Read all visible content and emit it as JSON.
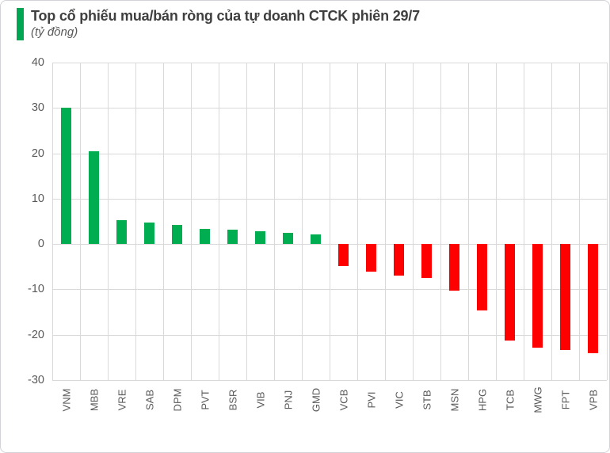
{
  "header": {
    "title": "Top cổ phiếu mua/bán ròng của tự doanh CTCK phiên 29/7",
    "subtitle": "(tỷ đồng)",
    "accent_color": "#00a651"
  },
  "chart_data": {
    "type": "bar",
    "title": "Top cổ phiếu mua/bán ròng của tự doanh CTCK phiên 29/7",
    "unit_label": "(tỷ đồng)",
    "categories": [
      "VNM",
      "MBB",
      "VRE",
      "SAB",
      "DPM",
      "PVT",
      "BSR",
      "VIB",
      "PNJ",
      "GMD",
      "VCB",
      "PVI",
      "VIC",
      "STB",
      "MSN",
      "HPG",
      "TCB",
      "MWG",
      "FPT",
      "VPB"
    ],
    "values": [
      30,
      20.4,
      5.2,
      4.8,
      4.3,
      3.4,
      3.1,
      2.8,
      2.4,
      2.2,
      -4.8,
      -6.1,
      -6.9,
      -7.4,
      -10.2,
      -14.7,
      -21.2,
      -22.9,
      -23.3,
      -24.1
    ],
    "xlabel": "",
    "ylabel": "",
    "ylim": [
      -30,
      40
    ],
    "yticks": [
      40,
      30,
      20,
      10,
      0,
      -10,
      -20,
      -30
    ],
    "grid": true,
    "legend": false,
    "positive_color": "#00ad50",
    "negative_color": "#ff0000",
    "gridline_color": "#d9d9d9",
    "tick_label_color": "#595959"
  }
}
